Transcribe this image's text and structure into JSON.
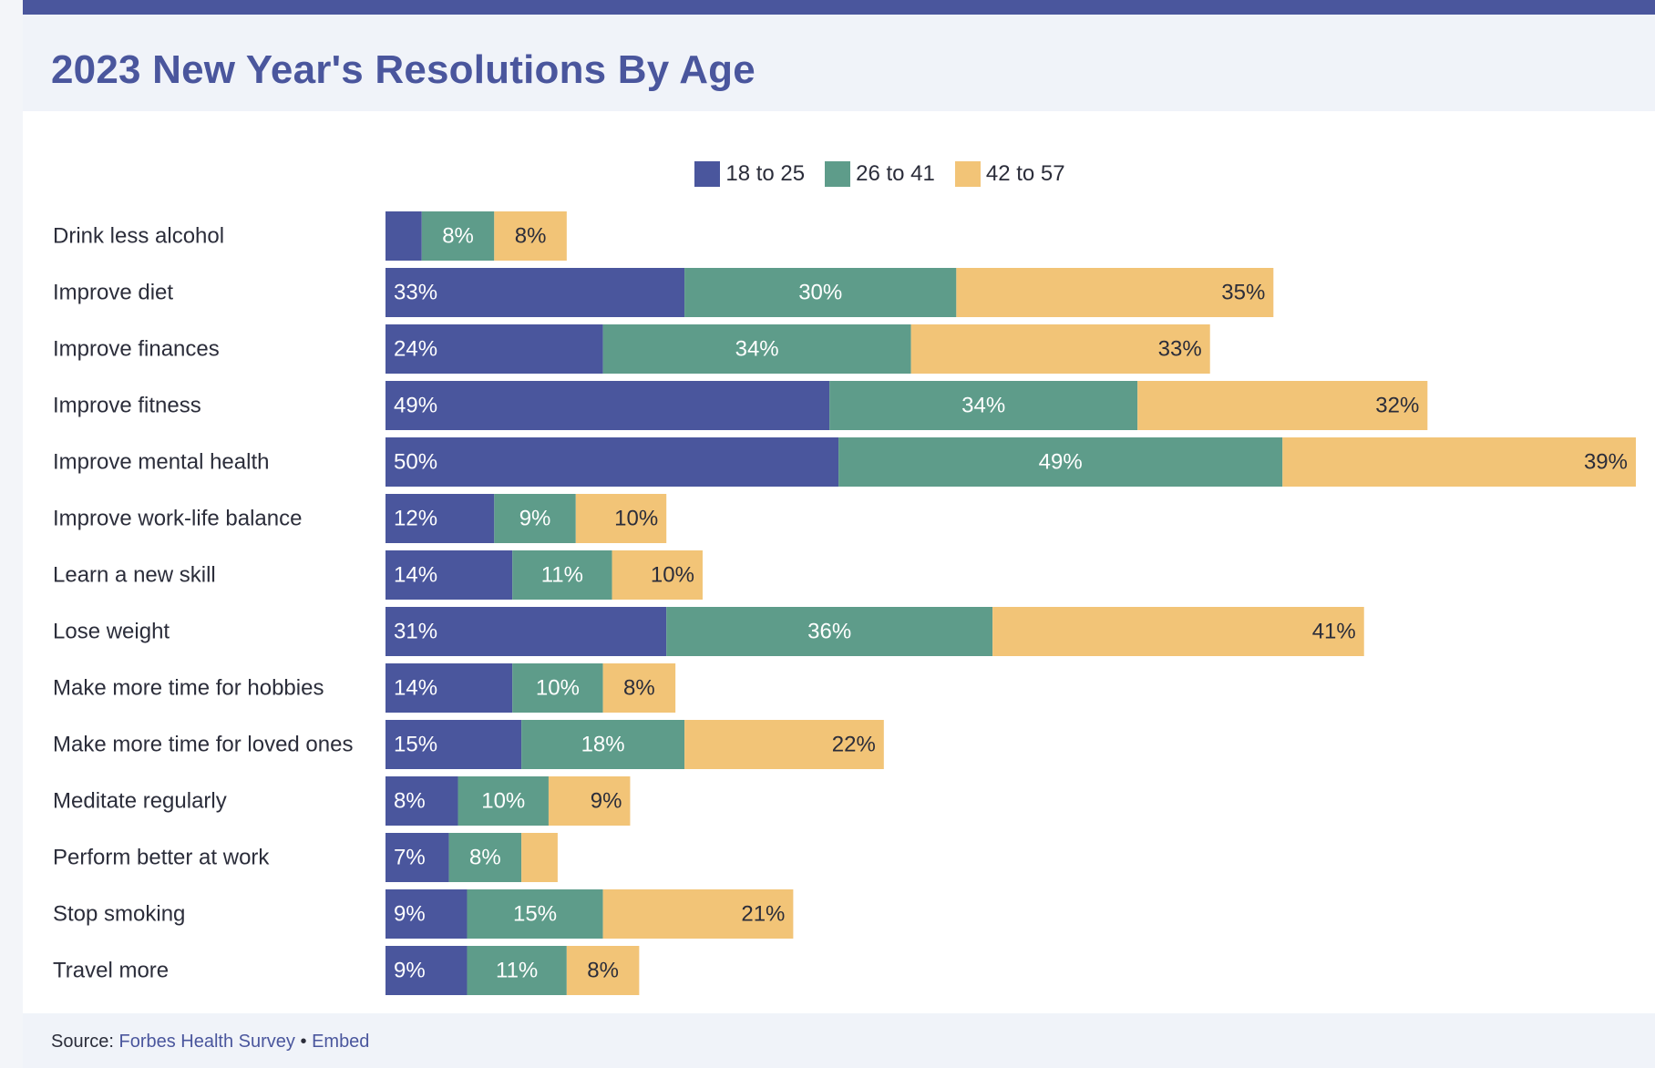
{
  "header": {
    "title": "2023 New Year's Resolutions By Age"
  },
  "footer": {
    "source_label": "Source:",
    "source_link": "Forbes Health Survey",
    "separator": "•",
    "embed_link": "Embed"
  },
  "colors": {
    "series1": "#4a569d",
    "series2": "#5e9c8a",
    "series3": "#f2c477",
    "label_light": "#ffffff",
    "label_dark": "#2b2d3a"
  },
  "chart_data": {
    "type": "bar",
    "orientation": "horizontal",
    "stacked": true,
    "title": "2023 New Year's Resolutions By Age",
    "categories": [
      "Drink less alcohol",
      "Improve diet",
      "Improve finances",
      "Improve fitness",
      "Improve mental health",
      "Improve work-life balance",
      "Learn a new skill",
      "Lose weight",
      "Make more time for hobbies",
      "Make more time for loved ones",
      "Meditate regularly",
      "Perform better at work",
      "Stop smoking",
      "Travel more"
    ],
    "series": [
      {
        "name": "18 to 25",
        "values": [
          4,
          33,
          24,
          49,
          50,
          12,
          14,
          31,
          14,
          15,
          8,
          7,
          9,
          9
        ],
        "labels": [
          "",
          "33%",
          "24%",
          "49%",
          "50%",
          "12%",
          "14%",
          "31%",
          "14%",
          "15%",
          "8%",
          "7%",
          "9%",
          "9%"
        ]
      },
      {
        "name": "26 to 41",
        "values": [
          8,
          30,
          34,
          34,
          49,
          9,
          11,
          36,
          10,
          18,
          10,
          8,
          15,
          11
        ],
        "labels": [
          "8%",
          "30%",
          "34%",
          "34%",
          "49%",
          "9%",
          "11%",
          "36%",
          "10%",
          "18%",
          "10%",
          "8%",
          "15%",
          "11%"
        ]
      },
      {
        "name": "42 to 57",
        "values": [
          8,
          35,
          33,
          32,
          39,
          10,
          10,
          41,
          8,
          22,
          9,
          4,
          21,
          8
        ],
        "labels": [
          "8%",
          "35%",
          "33%",
          "32%",
          "39%",
          "10%",
          "10%",
          "41%",
          "8%",
          "22%",
          "9%",
          "",
          "21%",
          "8%"
        ]
      }
    ],
    "xlim": [
      0,
      138
    ],
    "grid": false,
    "legend": "top-center",
    "xlabel": "",
    "ylabel": ""
  }
}
